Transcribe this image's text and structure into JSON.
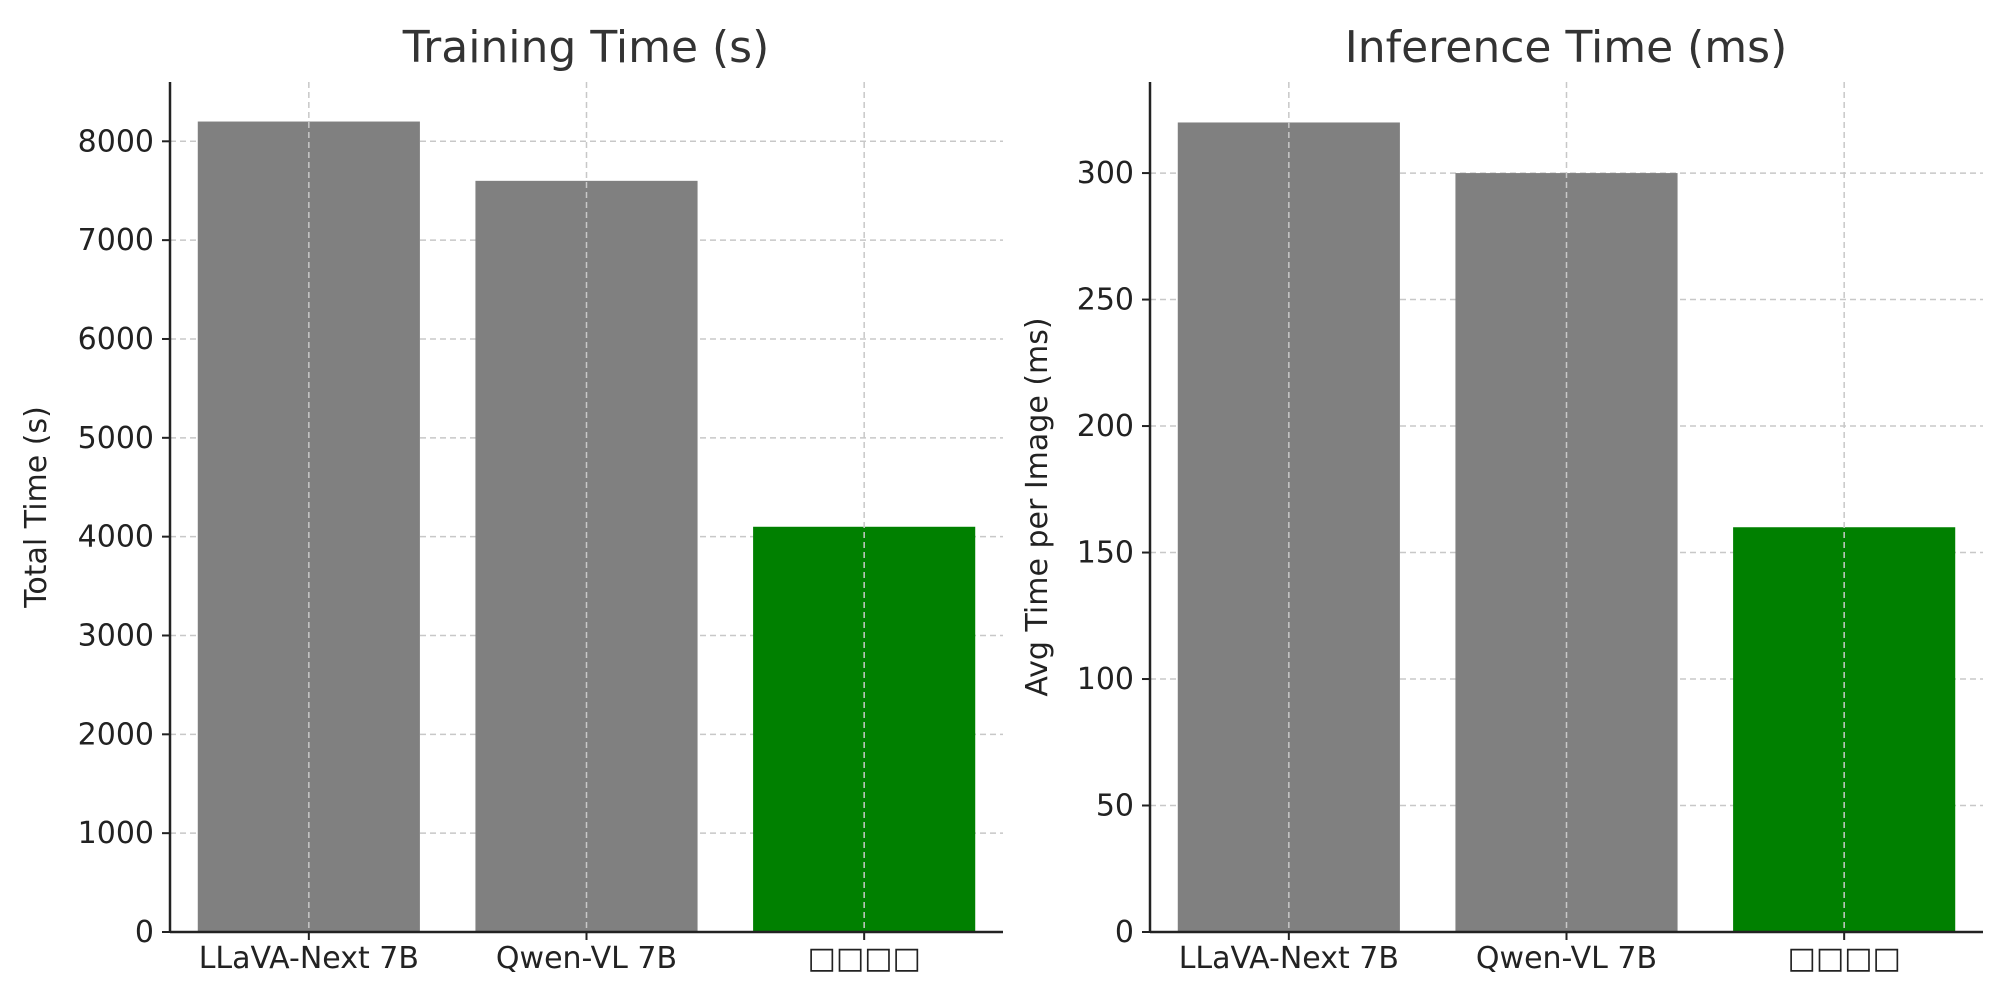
{
  "chart_data": [
    {
      "type": "bar",
      "title": "Training Time (s)",
      "xlabel": "",
      "ylabel": "Total Time (s)",
      "categories": [
        "LLaVA-Next 7B",
        "Qwen-VL 7B",
        "□□□□"
      ],
      "values": [
        8200,
        7600,
        4100
      ],
      "colors": [
        "#808080",
        "#808080",
        "#008000"
      ],
      "ylim": [
        0,
        8600
      ],
      "yticks": [
        0,
        1000,
        2000,
        3000,
        4000,
        5000,
        6000,
        7000,
        8000
      ],
      "grid": true
    },
    {
      "type": "bar",
      "title": "Inference Time (ms)",
      "xlabel": "",
      "ylabel": "Avg Time per Image (ms)",
      "categories": [
        "LLaVA-Next 7B",
        "Qwen-VL 7B",
        "□□□□"
      ],
      "values": [
        320,
        300,
        160
      ],
      "colors": [
        "#808080",
        "#808080",
        "#008000"
      ],
      "ylim": [
        0,
        336
      ],
      "yticks": [
        0,
        50,
        100,
        150,
        200,
        250,
        300
      ],
      "grid": true
    }
  ]
}
